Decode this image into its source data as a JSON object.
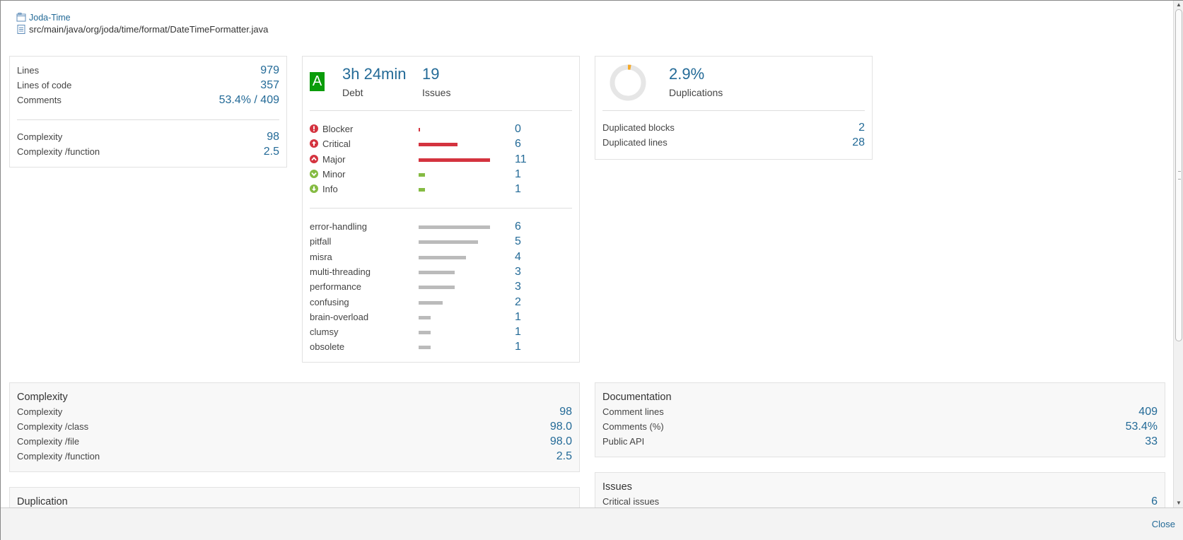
{
  "header": {
    "project": "Joda-Time",
    "file": "src/main/java/org/joda/time/format/DateTimeFormatter.java"
  },
  "size_card": {
    "rows": [
      {
        "label": "Lines",
        "value": "979"
      },
      {
        "label": "Lines of code",
        "value": "357"
      },
      {
        "label": "Comments",
        "value": "53.4% / 409"
      }
    ],
    "complexity_rows": [
      {
        "label": "Complexity",
        "value": "98"
      },
      {
        "label": "Complexity /function",
        "value": "2.5"
      }
    ]
  },
  "issues_card": {
    "rating": "A",
    "debt_value": "3h 24min",
    "debt_label": "Debt",
    "issues_value": "19",
    "issues_label": "Issues",
    "severities": [
      {
        "name": "Blocker",
        "count": "0",
        "fraction": 0.0,
        "color": "#d4333f",
        "icon": "blocker-icon"
      },
      {
        "name": "Critical",
        "count": "6",
        "fraction": 0.545,
        "color": "#d4333f",
        "icon": "critical-icon"
      },
      {
        "name": "Major",
        "count": "11",
        "fraction": 1.0,
        "color": "#d4333f",
        "icon": "major-icon"
      },
      {
        "name": "Minor",
        "count": "1",
        "fraction": 0.09,
        "color": "#85bb43",
        "icon": "minor-icon"
      },
      {
        "name": "Info",
        "count": "1",
        "fraction": 0.09,
        "color": "#85bb43",
        "icon": "info-icon"
      }
    ],
    "tags": [
      {
        "name": "error-handling",
        "count": "6",
        "fraction": 1.0
      },
      {
        "name": "pitfall",
        "count": "5",
        "fraction": 0.833
      },
      {
        "name": "misra",
        "count": "4",
        "fraction": 0.667
      },
      {
        "name": "multi-threading",
        "count": "3",
        "fraction": 0.5
      },
      {
        "name": "performance",
        "count": "3",
        "fraction": 0.5
      },
      {
        "name": "confusing",
        "count": "2",
        "fraction": 0.333
      },
      {
        "name": "brain-overload",
        "count": "1",
        "fraction": 0.167
      },
      {
        "name": "clumsy",
        "count": "1",
        "fraction": 0.167
      },
      {
        "name": "obsolete",
        "count": "1",
        "fraction": 0.167
      }
    ]
  },
  "duplications_card": {
    "percent_value": "2.9%",
    "percent_label": "Duplications",
    "donut_fraction": 0.029,
    "rows": [
      {
        "label": "Duplicated blocks",
        "value": "2"
      },
      {
        "label": "Duplicated lines",
        "value": "28"
      }
    ]
  },
  "complexity_section": {
    "title": "Complexity",
    "rows": [
      {
        "label": "Complexity",
        "value": "98"
      },
      {
        "label": "Complexity /class",
        "value": "98.0"
      },
      {
        "label": "Complexity /file",
        "value": "98.0"
      },
      {
        "label": "Complexity /function",
        "value": "2.5"
      }
    ]
  },
  "documentation_section": {
    "title": "Documentation",
    "rows": [
      {
        "label": "Comment lines",
        "value": "409"
      },
      {
        "label": "Comments (%)",
        "value": "53.4%"
      },
      {
        "label": "Public API",
        "value": "33"
      }
    ]
  },
  "duplication_section": {
    "title": "Duplication"
  },
  "issues_section": {
    "title": "Issues",
    "rows": [
      {
        "label": "Critical issues",
        "value": "6"
      }
    ]
  },
  "footer": {
    "close_label": "Close"
  }
}
